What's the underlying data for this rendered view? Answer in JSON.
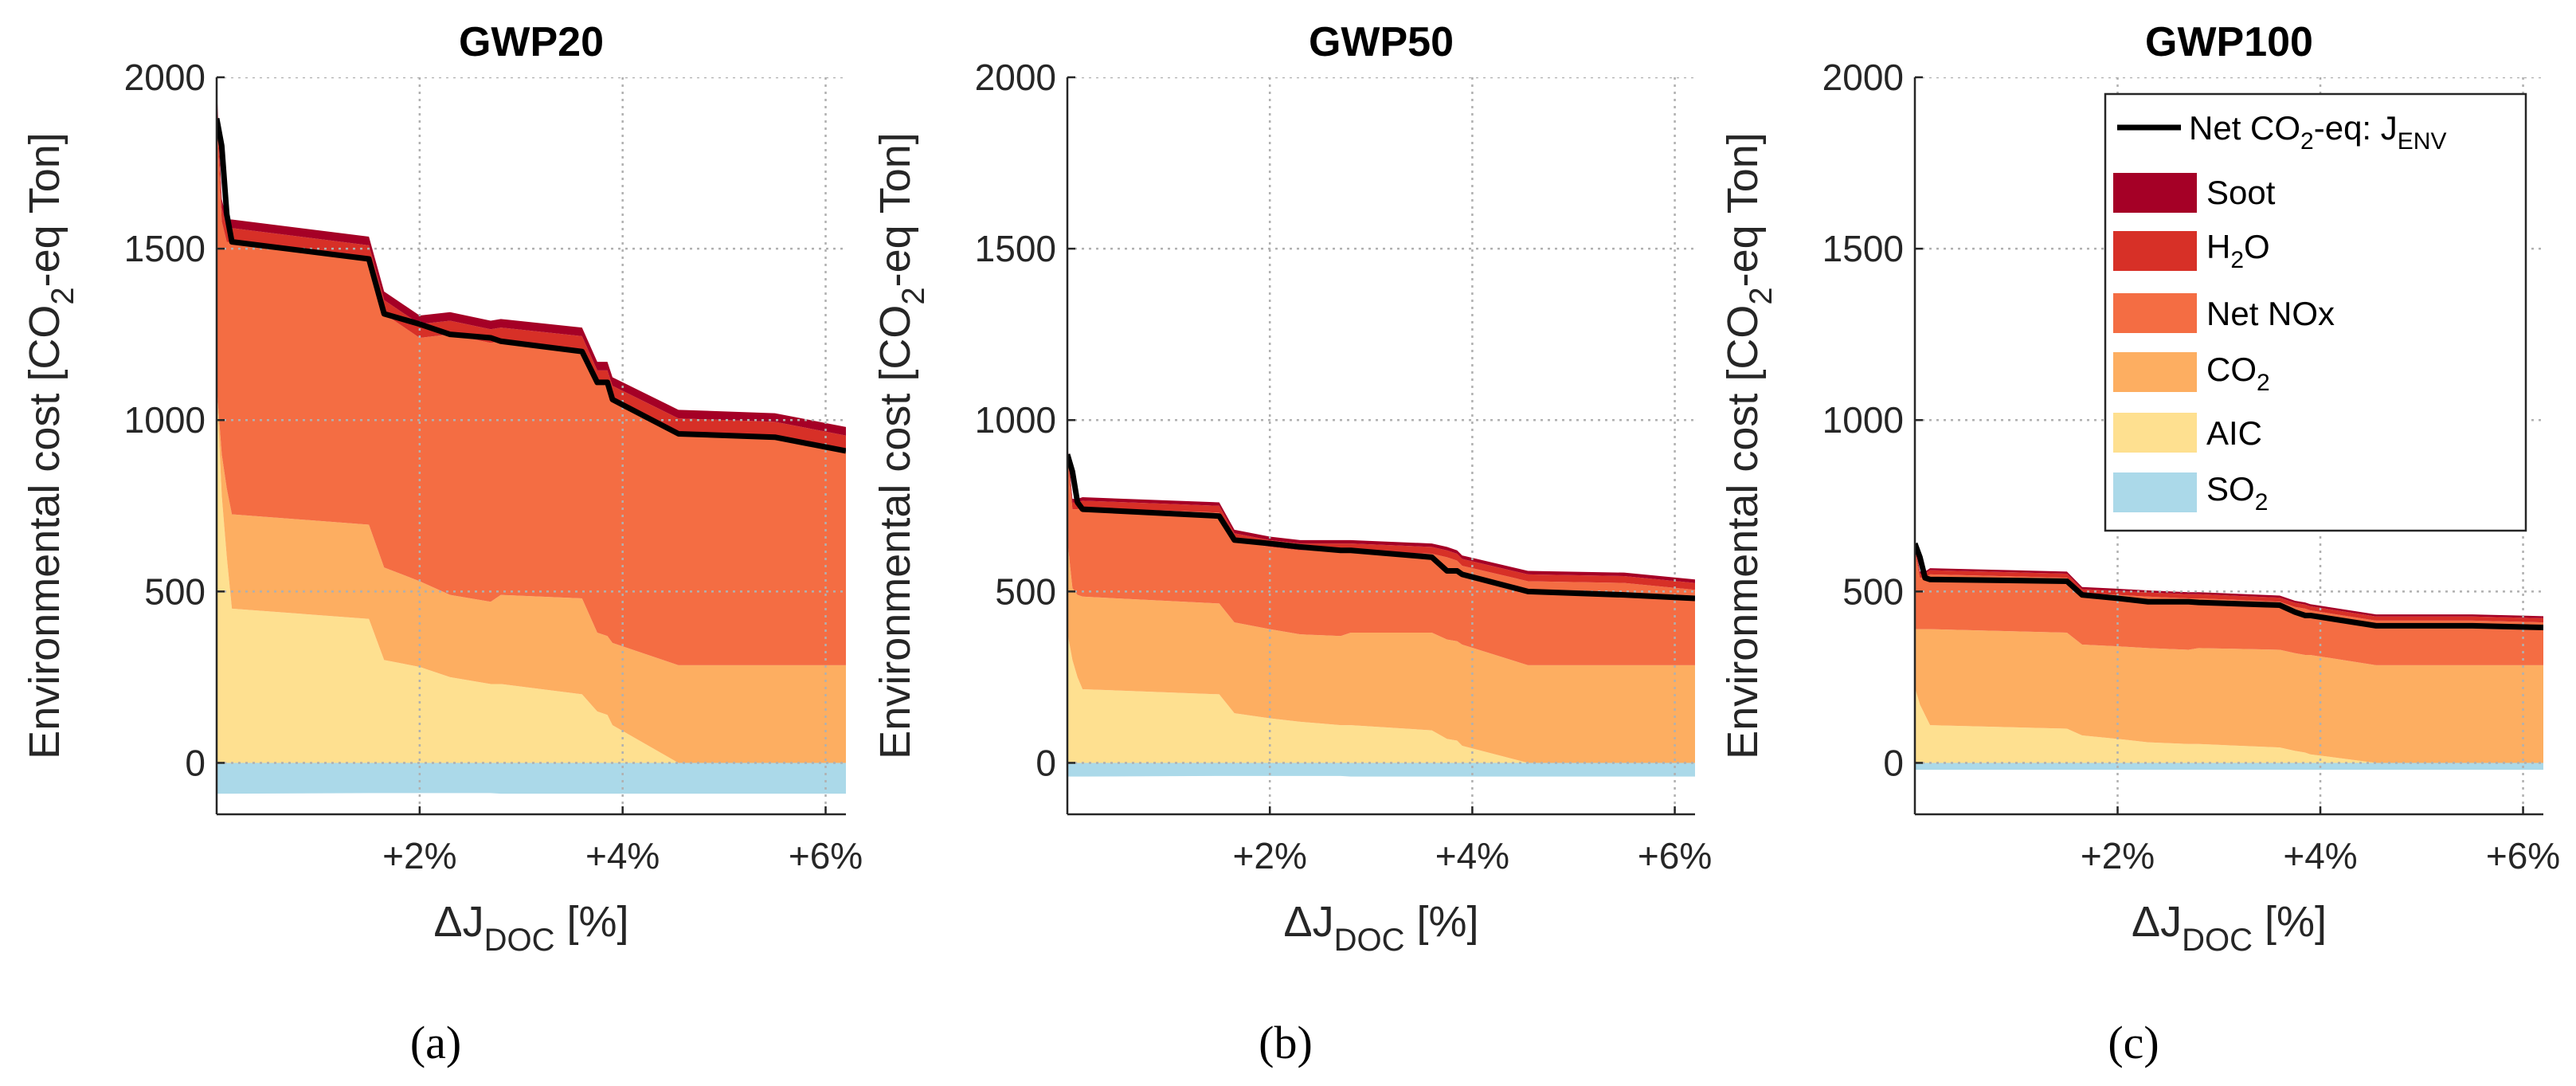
{
  "colors": {
    "soot": "#a50026",
    "h2o": "#d73027",
    "net_nox": "#f46d43",
    "co2": "#fdae61",
    "aic": "#fee090",
    "so2": "#abd9e9",
    "net_line": "#000000",
    "grid": "#b0b0b0",
    "axis": "#262626"
  },
  "legend": {
    "net_label": "Net CO",
    "net_sub": "2",
    "net_suffix": "-eq: J",
    "net_sub2": "ENV",
    "items": [
      {
        "key": "soot",
        "text": "Soot",
        "sub": "",
        "after": ""
      },
      {
        "key": "h2o",
        "text": "H",
        "sub": "2",
        "after": "O"
      },
      {
        "key": "net_nox",
        "text": "Net NOx",
        "sub": "",
        "after": ""
      },
      {
        "key": "co2",
        "text": "CO",
        "sub": "2",
        "after": ""
      },
      {
        "key": "aic",
        "text": "AIC",
        "sub": "",
        "after": ""
      },
      {
        "key": "so2",
        "text": "SO",
        "sub": "2",
        "after": ""
      }
    ]
  },
  "axis_text": {
    "ylabel_pre": "Environmental cost [CO",
    "ylabel_sub": "2",
    "ylabel_post": "-eq Ton]",
    "xlabel_pre": "ΔJ",
    "xlabel_sub": "DOC",
    "xlabel_post": " [%]"
  },
  "chart_data": [
    {
      "type": "area",
      "title": "GWP20",
      "subfig_label": "(a)",
      "xlabel": "ΔJDOC [%]",
      "ylabel": "Environmental cost [CO2-eq Ton]",
      "xlim": [
        0,
        6.2
      ],
      "ylim": [
        -150,
        2000
      ],
      "yticks": [
        0,
        500,
        1000,
        1500,
        2000
      ],
      "ytick_labels": [
        "0",
        "500",
        "1000",
        "1500",
        "2000"
      ],
      "xticks": [
        2,
        4,
        6
      ],
      "xtick_labels": [
        "+2%",
        "+4%",
        "+6%"
      ],
      "grid": true,
      "x": [
        0,
        0.05,
        0.1,
        0.15,
        1.5,
        1.65,
        2.0,
        2.3,
        2.7,
        2.8,
        3.6,
        3.75,
        3.85,
        3.9,
        4.55,
        5.5,
        6.2
      ],
      "so2": [
        -90,
        -90,
        -90,
        -90,
        -88,
        -88,
        -88,
        -88,
        -88,
        -90,
        -90,
        -90,
        -90,
        -90,
        -90,
        -90,
        -90
      ],
      "aic": [
        1100,
        780,
        600,
        450,
        420,
        300,
        280,
        250,
        230,
        230,
        200,
        150,
        140,
        110,
        0,
        0,
        0
      ],
      "co2": [
        0,
        120,
        200,
        275,
        275,
        270,
        250,
        240,
        240,
        260,
        280,
        230,
        230,
        240,
        285,
        285,
        285
      ],
      "net_nox": [
        790,
        680,
        720,
        795,
        775,
        740,
        710,
        760,
        755,
        740,
        725,
        725,
        735,
        710,
        680,
        670,
        630
      ],
      "h2o": [
        60,
        40,
        40,
        40,
        40,
        40,
        40,
        40,
        40,
        40,
        40,
        40,
        40,
        40,
        40,
        40,
        40
      ],
      "soot": [
        28,
        25,
        25,
        25,
        25,
        25,
        25,
        25,
        25,
        25,
        25,
        25,
        25,
        25,
        25,
        25,
        25
      ],
      "net": [
        1880,
        1800,
        1600,
        1520,
        1470,
        1310,
        1280,
        1250,
        1240,
        1230,
        1200,
        1110,
        1110,
        1060,
        960,
        950,
        910
      ]
    },
    {
      "type": "area",
      "title": "GWP50",
      "subfig_label": "(b)",
      "xlabel": "ΔJDOC [%]",
      "ylabel": "Environmental cost [CO2-eq Ton]",
      "xlim": [
        0,
        6.2
      ],
      "ylim": [
        -150,
        2000
      ],
      "yticks": [
        0,
        500,
        1000,
        1500,
        2000
      ],
      "ytick_labels": [
        "0",
        "500",
        "1000",
        "1500",
        "2000"
      ],
      "xticks": [
        2,
        4,
        6
      ],
      "xtick_labels": [
        "+2%",
        "+4%",
        "+6%"
      ],
      "grid": true,
      "x": [
        0,
        0.05,
        0.1,
        0.15,
        1.5,
        1.65,
        2.0,
        2.3,
        2.7,
        2.8,
        3.6,
        3.75,
        3.85,
        3.9,
        4.55,
        5.5,
        6.2
      ],
      "so2": [
        -40,
        -40,
        -40,
        -40,
        -38,
        -38,
        -38,
        -38,
        -38,
        -40,
        -40,
        -40,
        -40,
        -40,
        -40,
        -40,
        -40
      ],
      "aic": [
        380,
        300,
        250,
        215,
        200,
        145,
        130,
        120,
        110,
        110,
        95,
        70,
        65,
        50,
        0,
        0,
        0
      ],
      "co2": [
        270,
        210,
        240,
        270,
        265,
        265,
        260,
        255,
        260,
        270,
        285,
        290,
        290,
        295,
        285,
        285,
        285
      ],
      "net_nox": [
        250,
        230,
        250,
        260,
        265,
        240,
        240,
        245,
        250,
        240,
        230,
        240,
        235,
        230,
        245,
        240,
        220
      ],
      "h2o": [
        25,
        20,
        20,
        20,
        20,
        20,
        20,
        20,
        20,
        20,
        20,
        20,
        20,
        20,
        20,
        20,
        20
      ],
      "soot": [
        10,
        10,
        10,
        10,
        10,
        10,
        10,
        10,
        10,
        10,
        10,
        10,
        10,
        10,
        10,
        10,
        10
      ],
      "net": [
        900,
        850,
        760,
        740,
        720,
        650,
        640,
        630,
        620,
        620,
        600,
        560,
        560,
        550,
        500,
        490,
        480
      ]
    },
    {
      "type": "area",
      "title": "GWP100",
      "subfig_label": "(c)",
      "xlabel": "ΔJDOC [%]",
      "ylabel": "Environmental cost [CO2-eq Ton]",
      "xlim": [
        0,
        6.2
      ],
      "ylim": [
        -150,
        2000
      ],
      "yticks": [
        0,
        500,
        1000,
        1500,
        2000
      ],
      "ytick_labels": [
        "0",
        "500",
        "1000",
        "1500",
        "2000"
      ],
      "xticks": [
        2,
        4,
        6
      ],
      "xtick_labels": [
        "+2%",
        "+4%",
        "+6%"
      ],
      "grid": true,
      "x": [
        0,
        0.05,
        0.1,
        0.15,
        1.5,
        1.65,
        2.0,
        2.3,
        2.7,
        2.8,
        3.6,
        3.75,
        3.85,
        3.9,
        4.55,
        5.5,
        6.2
      ],
      "so2": [
        -20,
        -20,
        -20,
        -20,
        -20,
        -20,
        -20,
        -20,
        -20,
        -20,
        -20,
        -20,
        -20,
        -20,
        -20,
        -20,
        -20
      ],
      "aic": [
        220,
        170,
        140,
        110,
        100,
        80,
        70,
        60,
        55,
        55,
        45,
        35,
        30,
        25,
        0,
        0,
        0
      ],
      "co2": [
        170,
        220,
        250,
        280,
        280,
        265,
        270,
        275,
        275,
        280,
        285,
        285,
        285,
        290,
        285,
        285,
        285
      ],
      "net_nox": [
        230,
        150,
        150,
        160,
        160,
        150,
        150,
        150,
        150,
        145,
        140,
        135,
        135,
        130,
        130,
        130,
        125
      ],
      "h2o": [
        14,
        12,
        12,
        12,
        12,
        12,
        12,
        12,
        12,
        12,
        12,
        12,
        12,
        12,
        12,
        12,
        12
      ],
      "soot": [
        6,
        6,
        6,
        6,
        6,
        6,
        6,
        6,
        6,
        6,
        6,
        6,
        6,
        6,
        6,
        6,
        6
      ],
      "net": [
        640,
        600,
        540,
        535,
        530,
        490,
        480,
        470,
        470,
        468,
        460,
        440,
        430,
        430,
        400,
        400,
        395
      ]
    }
  ]
}
